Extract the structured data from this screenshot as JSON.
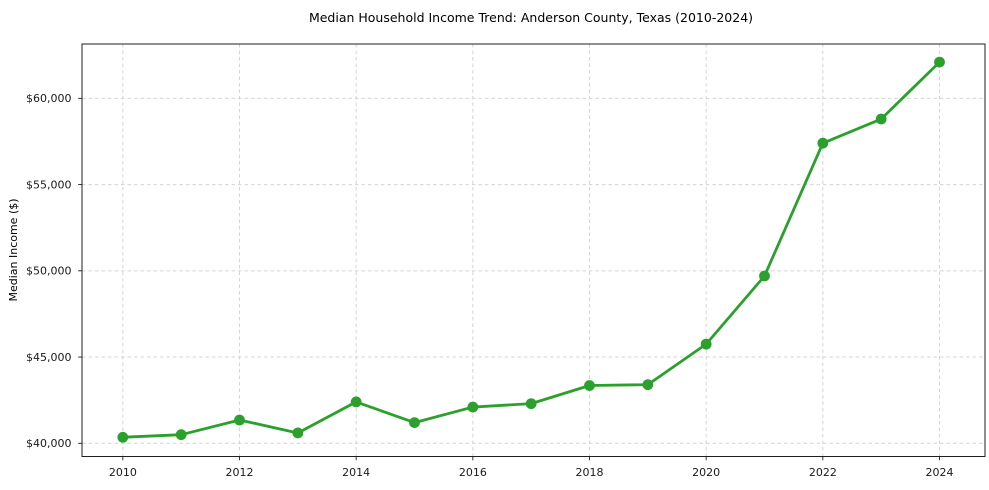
{
  "chart_data": {
    "type": "line",
    "title": "Median Household Income Trend: Anderson County, Texas (2010-2024)",
    "xlabel": "",
    "ylabel": "Median Income ($)",
    "x": [
      2010,
      2011,
      2012,
      2013,
      2014,
      2015,
      2016,
      2017,
      2018,
      2019,
      2020,
      2021,
      2022,
      2023,
      2024
    ],
    "values": [
      40350,
      40500,
      41350,
      40600,
      42400,
      41200,
      42100,
      42300,
      43350,
      43400,
      45750,
      49700,
      57400,
      58800,
      62100
    ],
    "x_ticks": [
      {
        "value": 2010,
        "label": "2010"
      },
      {
        "value": 2012,
        "label": "2012"
      },
      {
        "value": 2014,
        "label": "2014"
      },
      {
        "value": 2016,
        "label": "2016"
      },
      {
        "value": 2018,
        "label": "2018"
      },
      {
        "value": 2020,
        "label": "2020"
      },
      {
        "value": 2022,
        "label": "2022"
      },
      {
        "value": 2024,
        "label": "2024"
      }
    ],
    "y_ticks": [
      {
        "value": 40000,
        "label": "$40,000"
      },
      {
        "value": 45000,
        "label": "$45,000"
      },
      {
        "value": 50000,
        "label": "$50,000"
      },
      {
        "value": 55000,
        "label": "$55,000"
      },
      {
        "value": 60000,
        "label": "$60,000"
      }
    ],
    "xlim": [
      2009.3,
      2024.78
    ],
    "ylim": [
      39235,
      63150
    ],
    "grid": true,
    "legend_position": "none",
    "marker": "circle",
    "line_color": "#2ca02c",
    "grid_color": "#d4d4d4",
    "axis_color": "#1f1f1f",
    "background_color": "#ffffff"
  }
}
